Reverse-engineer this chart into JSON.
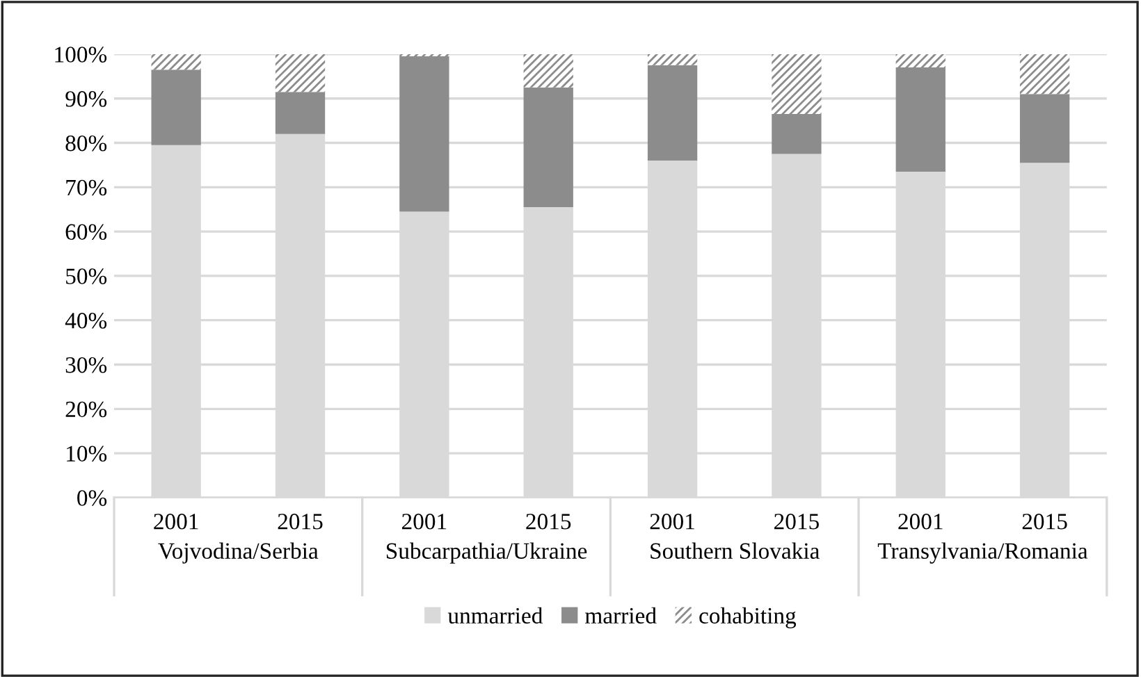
{
  "chart_data": {
    "type": "bar",
    "stacked": true,
    "categories": [
      "2001",
      "2015",
      "2001",
      "2015",
      "2001",
      "2015",
      "2001",
      "2015"
    ],
    "annotations": [
      "Vojvodina/Serbia",
      "Subcarpathia/Ukraine",
      "Southern Slovakia",
      "Transylvania/Romania"
    ],
    "series": [
      {
        "name": "unmarried",
        "color": "#d9d9d9",
        "values": [
          79.5,
          82,
          64.5,
          65.5,
          76,
          77.5,
          73.5,
          75.5
        ]
      },
      {
        "name": "married",
        "color": "#8c8c8c",
        "values": [
          17,
          9.5,
          35,
          27,
          21.5,
          9,
          23.5,
          15.5
        ]
      },
      {
        "name": "cohabiting",
        "color": "#8c8c8c",
        "values": [
          3.5,
          8.5,
          0.5,
          7.5,
          2.5,
          13.5,
          3,
          9
        ]
      }
    ],
    "ylim": [
      0,
      100
    ],
    "yticks": [
      {
        "value": 0,
        "label": "0%"
      },
      {
        "value": 10,
        "label": "10%"
      },
      {
        "value": 20,
        "label": "20%"
      },
      {
        "value": 30,
        "label": "30%"
      },
      {
        "value": 40,
        "label": "40%"
      },
      {
        "value": 50,
        "label": "50%"
      },
      {
        "value": 60,
        "label": "60%"
      },
      {
        "value": 70,
        "label": "70%"
      },
      {
        "value": 80,
        "label": "80%"
      },
      {
        "value": 90,
        "label": "90%"
      },
      {
        "value": 100,
        "label": "100%"
      }
    ],
    "grid": "y",
    "legend": "bottom"
  }
}
